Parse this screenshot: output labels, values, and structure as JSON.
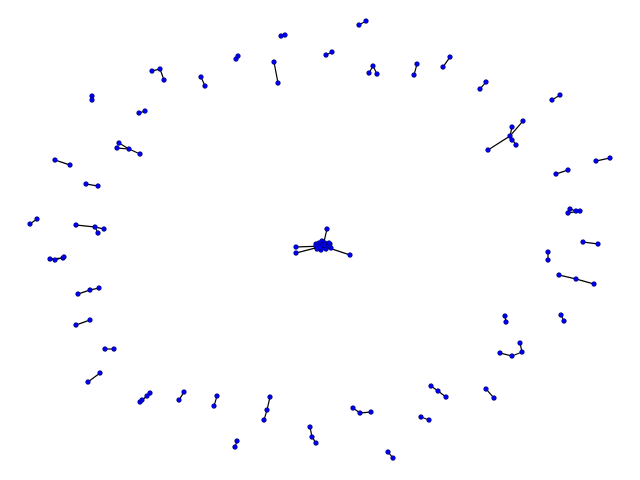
{
  "colors": {
    "background": "#ffffff",
    "node_fill": "#0000ee",
    "node_stroke": "#000066",
    "edge": "#000000"
  },
  "graph": {
    "type": "network",
    "node_count": 112,
    "edge_count": 66
  }
}
